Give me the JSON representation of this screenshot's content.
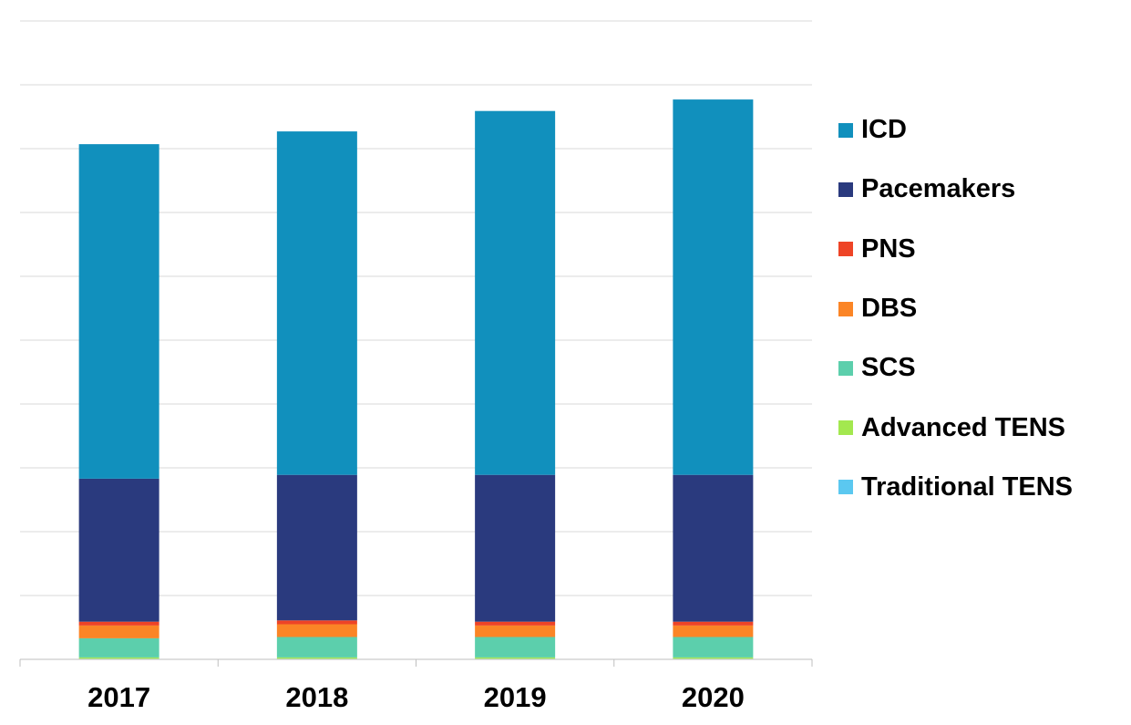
{
  "chart_data": {
    "type": "bar",
    "stacked": true,
    "categories": [
      "2017",
      "2018",
      "2019",
      "2020"
    ],
    "series": [
      {
        "name": "Traditional TENS",
        "color": "#5BC8F0",
        "values": [
          0.05,
          0.05,
          0.05,
          0.05
        ]
      },
      {
        "name": "Advanced TENS",
        "color": "#A3E84F",
        "values": [
          0.1,
          0.1,
          0.1,
          0.1
        ]
      },
      {
        "name": "SCS",
        "color": "#5CCFAC",
        "values": [
          1.5,
          1.6,
          1.6,
          1.6
        ]
      },
      {
        "name": "DBS",
        "color": "#FB8526",
        "values": [
          1.0,
          1.0,
          0.9,
          0.9
        ]
      },
      {
        "name": "PNS",
        "color": "#EE4426",
        "values": [
          0.3,
          0.3,
          0.3,
          0.3
        ]
      },
      {
        "name": "Pacemakers",
        "color": "#2A3A7E",
        "values": [
          11.2,
          11.4,
          11.5,
          11.5
        ]
      },
      {
        "name": "ICD",
        "color": "#1190BD",
        "values": [
          26.2,
          26.9,
          28.5,
          29.4
        ]
      }
    ],
    "legend_order": [
      "ICD",
      "Pacemakers",
      "PNS",
      "DBS",
      "SCS",
      "Advanced TENS",
      "Traditional TENS"
    ],
    "legend_position": "right",
    "ylim": [
      0,
      50
    ],
    "gridlines": true,
    "y_tick_labels_shown": false,
    "title": "",
    "xlabel": "",
    "ylabel": ""
  }
}
